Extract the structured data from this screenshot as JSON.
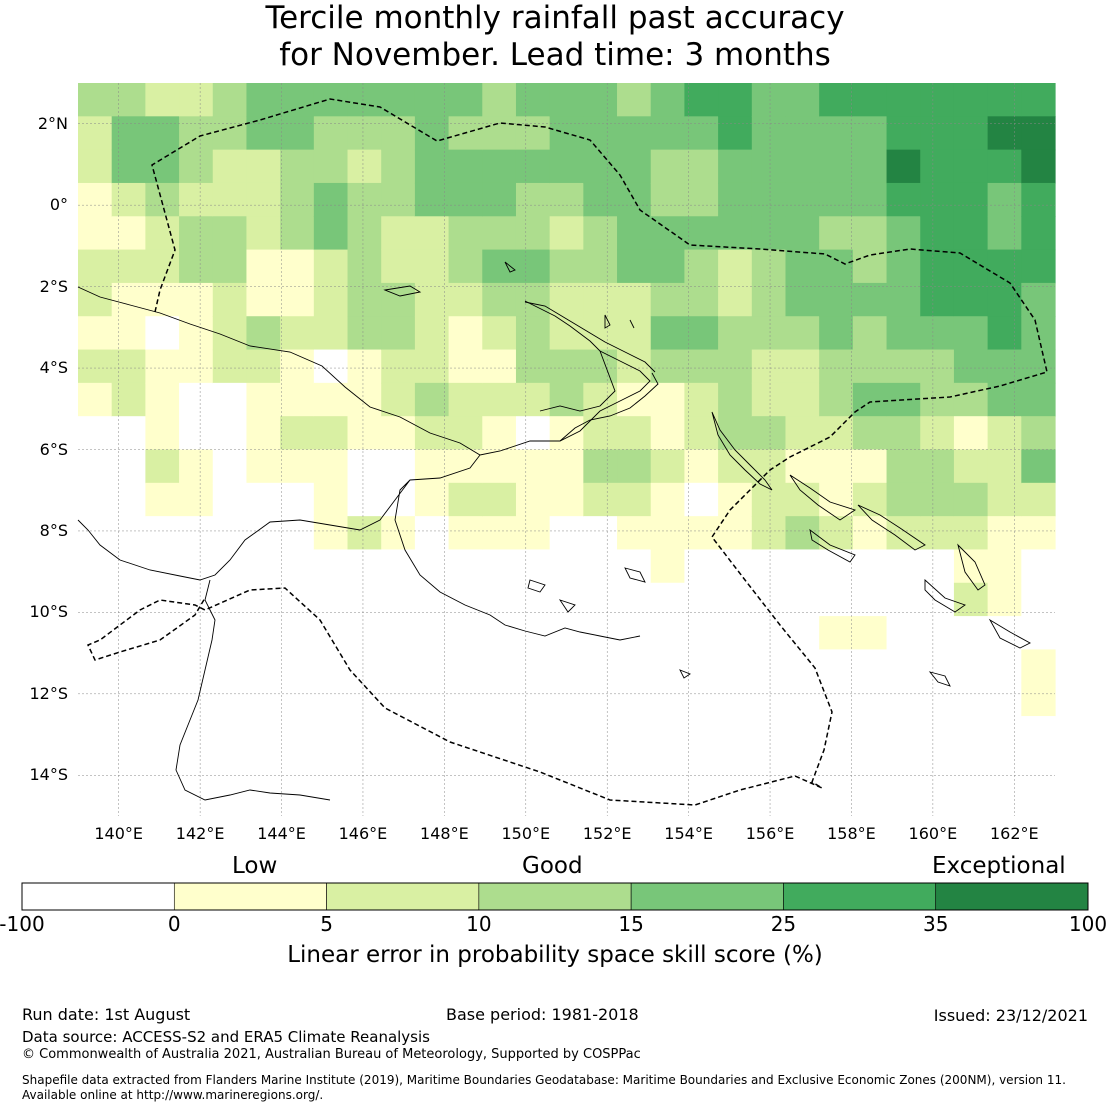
{
  "title": {
    "line1": "Tercile monthly rainfall past accuracy",
    "line2": "for November. Lead time: 3 months"
  },
  "map": {
    "lon_ticks": [
      "140°E",
      "142°E",
      "144°E",
      "146°E",
      "148°E",
      "150°E",
      "152°E",
      "154°E",
      "156°E",
      "158°E",
      "160°E",
      "162°E"
    ],
    "lat_ticks": [
      "2°N",
      "0°",
      "2°S",
      "4°S",
      "6°S",
      "8°S",
      "10°S",
      "12°S",
      "14°S"
    ],
    "lon_range": [
      139.0,
      163.0
    ],
    "lat_range": [
      -15.0,
      3.0
    ],
    "grid_resolution_deg": 0.8333,
    "skill_field_note_removed": true
  },
  "colorbar": {
    "categories": [
      "Low",
      "Good",
      "Exceptional"
    ],
    "ticks": [
      "-100",
      "0",
      "5",
      "10",
      "15",
      "25",
      "35",
      "100"
    ],
    "bins": [
      {
        "from": -100,
        "to": 0,
        "color": "#ffffff"
      },
      {
        "from": 0,
        "to": 5,
        "color": "#ffffcc"
      },
      {
        "from": 5,
        "to": 10,
        "color": "#d9f0a3"
      },
      {
        "from": 10,
        "to": 15,
        "color": "#addd8e"
      },
      {
        "from": 15,
        "to": 25,
        "color": "#78c679"
      },
      {
        "from": 25,
        "to": 35,
        "color": "#41ab5d"
      },
      {
        "from": 35,
        "to": 100,
        "color": "#238443"
      }
    ],
    "label": "Linear error in probability space skill score (%)"
  },
  "footer": {
    "run_date": "Run date: 1st August",
    "base_period": "Base period: 1981-2018",
    "issued": "Issued: 23/12/2021",
    "data_source": "Data source: ACCESS-S2 and ERA5 Climate Reanalysis",
    "copyright": "© Commonwealth of Australia 2021, Australian Bureau of Meteorology, Supported by COSPPac",
    "shapefile_line1": "Shapefile data extracted from Flanders Marine Institute (2019), Maritime Boundaries Geodatabase: Maritime Boundaries and Exclusive Economic Zones (200NM), version 11.",
    "shapefile_line2": "Available online at http://www.marineregions.org/."
  }
}
